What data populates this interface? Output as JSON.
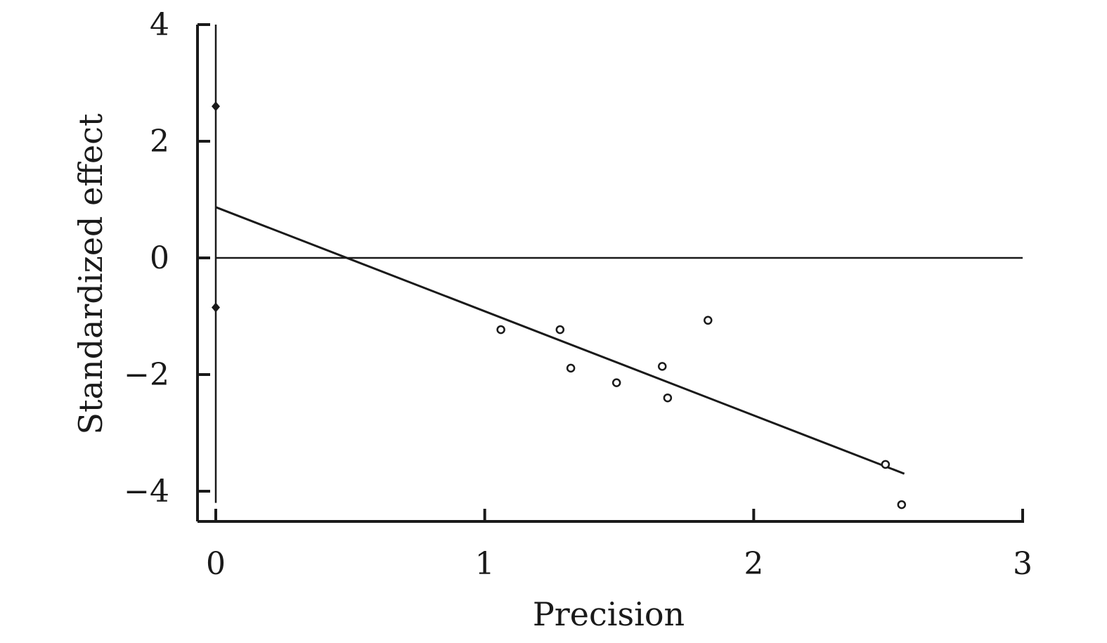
{
  "chart_data": {
    "type": "scatter",
    "title": "",
    "xlabel": "Precision",
    "ylabel": "Standardized effect",
    "xlim": [
      0,
      3
    ],
    "ylim": [
      -4.5,
      4
    ],
    "x_ticks": [
      {
        "value": 0,
        "label": "0"
      },
      {
        "value": 1,
        "label": "1"
      },
      {
        "value": 2,
        "label": "2"
      },
      {
        "value": 3,
        "label": "3"
      }
    ],
    "y_ticks": [
      {
        "value": 4,
        "label": "4"
      },
      {
        "value": 2,
        "label": "2"
      },
      {
        "value": 0,
        "label": "0"
      },
      {
        "value": -2,
        "label": "−2"
      },
      {
        "value": -4,
        "label": "−4"
      }
    ],
    "grid": false,
    "legend": "none",
    "reference_line_y": 0,
    "regression_line": {
      "x": [
        0,
        2.56
      ],
      "y": [
        0.87,
        -3.7
      ]
    },
    "intercept_interval": {
      "x": 0,
      "y_low": -0.85,
      "y_high": 2.6
    },
    "points": [
      {
        "x": 1.06,
        "y": -1.23
      },
      {
        "x": 1.28,
        "y": -1.23
      },
      {
        "x": 1.32,
        "y": -1.89
      },
      {
        "x": 1.49,
        "y": -2.14
      },
      {
        "x": 1.66,
        "y": -1.86
      },
      {
        "x": 1.68,
        "y": -2.4
      },
      {
        "x": 1.83,
        "y": -1.07
      },
      {
        "x": 2.49,
        "y": -3.54
      },
      {
        "x": 2.55,
        "y": -4.23
      }
    ],
    "colors": {
      "ink": "#1a1a1a",
      "background": "#ffffff"
    }
  }
}
